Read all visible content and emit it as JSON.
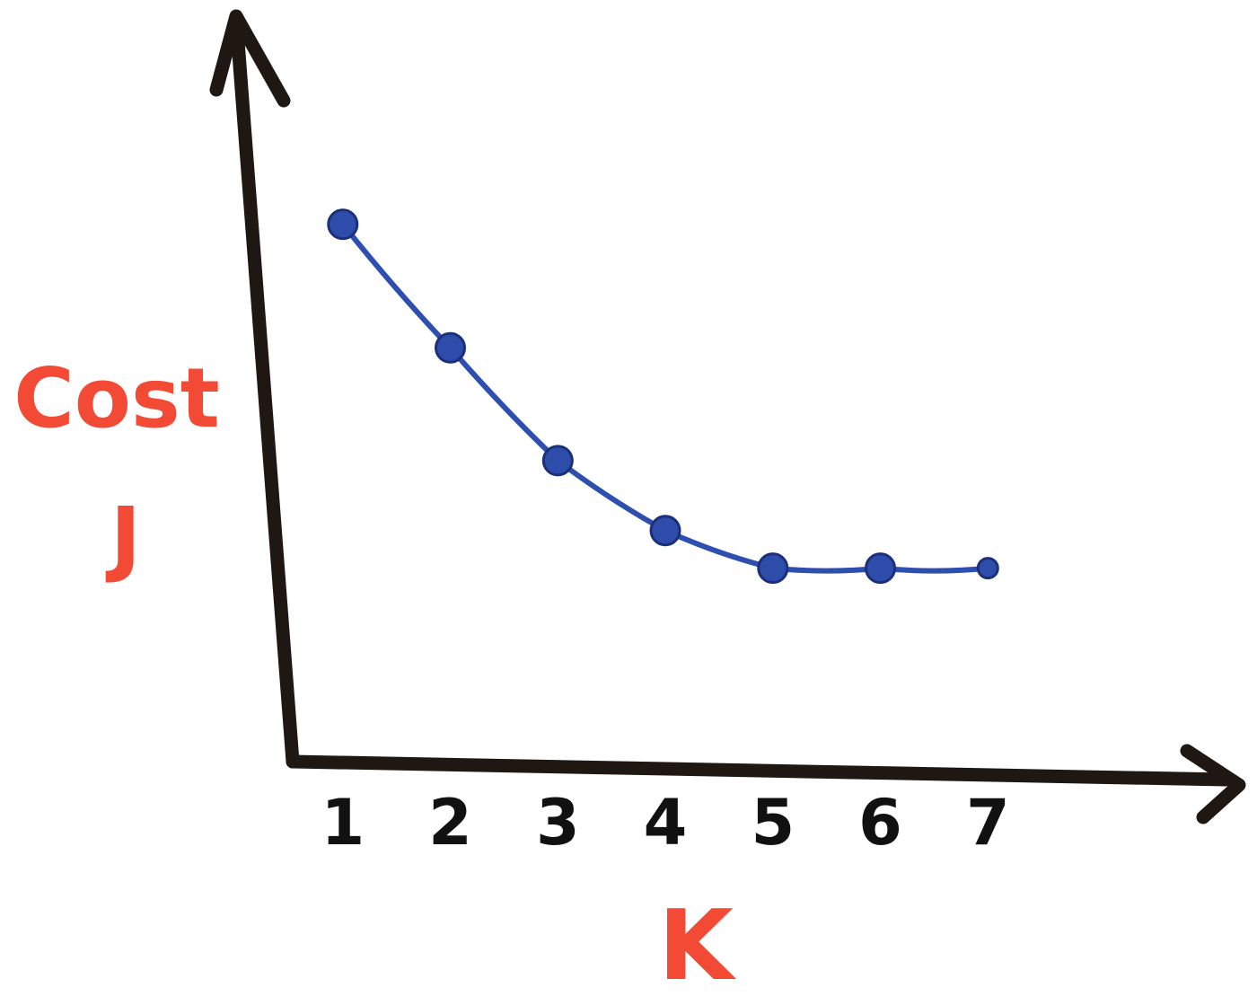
{
  "chart_data": {
    "type": "line",
    "title": "",
    "xlabel": "K",
    "ylabel_lines": [
      "Cost",
      "J"
    ],
    "x": [
      1,
      2,
      3,
      4,
      5,
      6,
      7
    ],
    "x_tick_labels": [
      "1",
      "2",
      "3",
      "4",
      "5",
      "6",
      "7"
    ],
    "series": [
      {
        "values": [
          10,
          7.7,
          5.6,
          4.3,
          3.6,
          3.6,
          3.6
        ],
        "color": "#2f4fb0"
      }
    ],
    "ylim": [
      0,
      12
    ],
    "xlim": [
      0,
      8
    ],
    "grid": false,
    "legend": "none",
    "axis_color": "#1e1712",
    "label_color": "#f24a35"
  }
}
